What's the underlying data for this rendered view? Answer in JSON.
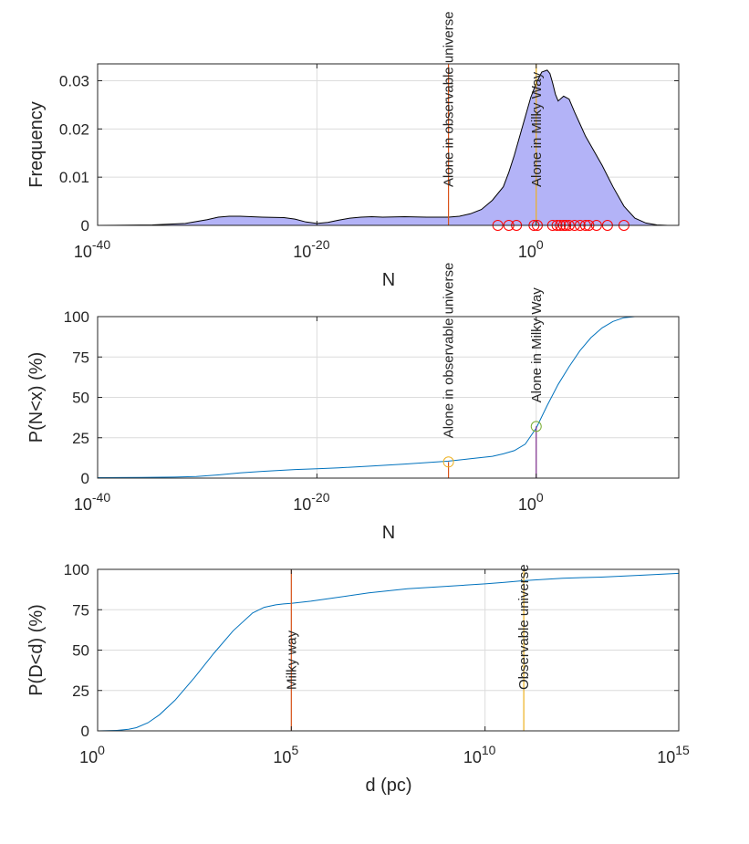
{
  "figure": {
    "background": "#ffffff",
    "axis_color": "#262626",
    "grid_color": "#dcdcdc"
  },
  "chart_data": [
    {
      "type": "area",
      "xlabel": "N",
      "ylabel": "Frequency",
      "xscale": "log",
      "xlim_exp": [
        -40,
        13
      ],
      "x_tick_exps": [
        -40,
        -20,
        0
      ],
      "ylim": [
        0,
        0.0335
      ],
      "y_ticks": [
        "0",
        "0.01",
        "0.02",
        "0.03"
      ],
      "y_tick_values": [
        0,
        0.01,
        0.02,
        0.03
      ],
      "grid": true,
      "fill_color": "#b3b3f7",
      "line_color": "#000000",
      "curve": {
        "x_exp": [
          -40,
          -35,
          -32,
          -30,
          -29,
          -28,
          -27,
          -25,
          -23,
          -22,
          -21,
          -20,
          -19,
          -18,
          -17,
          -16,
          -15,
          -14,
          -12,
          -10,
          -8,
          -7,
          -6,
          -5,
          -4,
          -3,
          -2.5,
          -2,
          -1.5,
          -1,
          -0.5,
          0,
          0.5,
          1,
          1.25,
          1.5,
          1.75,
          2,
          2.5,
          3,
          3.5,
          4,
          4.5,
          5,
          6,
          7,
          8,
          9,
          10,
          11,
          12,
          13
        ],
        "y": [
          0,
          0.0001,
          0.0004,
          0.0012,
          0.0017,
          0.0019,
          0.0019,
          0.0017,
          0.0016,
          0.0013,
          0.0007,
          0.0004,
          0.0006,
          0.0011,
          0.0015,
          0.0017,
          0.0018,
          0.0017,
          0.0018,
          0.0017,
          0.0017,
          0.0019,
          0.0024,
          0.0033,
          0.0052,
          0.008,
          0.011,
          0.0145,
          0.0185,
          0.0225,
          0.0265,
          0.0295,
          0.0318,
          0.0322,
          0.0315,
          0.0295,
          0.0272,
          0.0258,
          0.0268,
          0.0262,
          0.0235,
          0.021,
          0.0185,
          0.0165,
          0.0125,
          0.008,
          0.004,
          0.0015,
          0.0005,
          0.0001,
          0,
          0
        ]
      },
      "samples": {
        "color": "#ff0000",
        "x_exp": [
          -3.5,
          -2.5,
          -1.8,
          -0.2,
          0.1,
          1.5,
          1.9,
          2.2,
          2.5,
          2.7,
          3.0,
          3.5,
          4.0,
          4.5,
          4.8,
          5.5,
          6.5,
          8.0
        ]
      },
      "annotations": [
        {
          "label": "Alone in observable universe",
          "x_exp": -8,
          "color": "#d95319"
        },
        {
          "label": "Alone in Milky Way",
          "x_exp": 0,
          "color": "#edb120"
        }
      ]
    },
    {
      "type": "line",
      "xlabel": "N",
      "ylabel": "P(N<x) (%)",
      "xscale": "log",
      "xlim_exp": [
        -40,
        13
      ],
      "x_tick_exps": [
        -40,
        -20,
        0
      ],
      "ylim": [
        0,
        100
      ],
      "y_ticks": [
        "0",
        "25",
        "50",
        "75",
        "100"
      ],
      "y_tick_values": [
        0,
        25,
        50,
        75,
        100
      ],
      "grid": true,
      "line_color": "#0072bd",
      "curve": {
        "x_exp": [
          -40,
          -36,
          -33,
          -31,
          -29,
          -27,
          -25,
          -22,
          -20,
          -18,
          -15,
          -12,
          -10,
          -8,
          -6,
          -4,
          -3,
          -2,
          -1,
          0,
          1,
          2,
          3,
          4,
          5,
          6,
          7,
          8,
          9,
          10,
          11,
          12,
          13
        ],
        "y": [
          0.3,
          0.4,
          0.6,
          1,
          2,
          3.2,
          4.2,
          5.3,
          5.8,
          6.3,
          7.5,
          8.7,
          9.6,
          10.5,
          12,
          13.5,
          15,
          17,
          21,
          31,
          45,
          58,
          69,
          79,
          87,
          93,
          97,
          99.3,
          100,
          100,
          100,
          100,
          100
        ]
      },
      "markers": [
        {
          "x_exp": -8,
          "y": 10,
          "color": "#edb120"
        },
        {
          "x_exp": 0,
          "y": 32,
          "color": "#77ac30"
        }
      ],
      "annotations": [
        {
          "label": "Alone in observable universe",
          "x_exp": -8,
          "color": "#d95319",
          "y_end": 10
        },
        {
          "label": "Alone in Milky Way",
          "x_exp": 0,
          "color": "#7e2f8e",
          "y_end": 32
        }
      ]
    },
    {
      "type": "line",
      "xlabel": "d (pc)",
      "ylabel": "P(D<d) (%)",
      "xscale": "log",
      "xlim_exp": [
        0,
        15
      ],
      "x_tick_exps": [
        0,
        5,
        10,
        15
      ],
      "ylim": [
        0,
        100
      ],
      "y_ticks": [
        "0",
        "25",
        "50",
        "75",
        "100"
      ],
      "y_tick_values": [
        0,
        25,
        50,
        75,
        100
      ],
      "grid": true,
      "line_color": "#0072bd",
      "curve": {
        "x_exp": [
          0,
          0.5,
          0.8,
          1,
          1.3,
          1.6,
          2,
          2.5,
          3,
          3.5,
          4,
          4.3,
          4.6,
          4.8,
          5,
          5.5,
          6,
          7,
          8,
          9,
          10,
          10.5,
          11,
          12,
          13,
          14,
          15
        ],
        "y": [
          0,
          0.3,
          1,
          2,
          5,
          10,
          19,
          33,
          48,
          62,
          73,
          76.5,
          78,
          78.6,
          79,
          80.3,
          82,
          85.5,
          88,
          89.5,
          91,
          92,
          93,
          94.5,
          95.2,
          96.3,
          97.5
        ]
      },
      "annotations": [
        {
          "label": "Milky way",
          "x_exp": 5,
          "color": "#d95319"
        },
        {
          "label": "Observable universe",
          "x_exp": 11,
          "color": "#edb120"
        }
      ]
    }
  ]
}
